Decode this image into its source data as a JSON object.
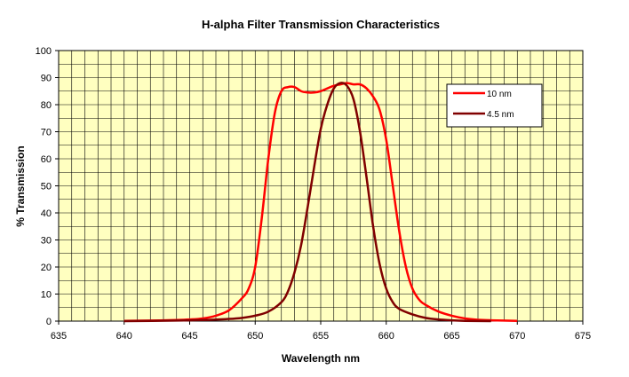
{
  "chart_data": {
    "type": "line",
    "title": "H-alpha Filter Transmission Characteristics",
    "xlabel": "Wavelength nm",
    "ylabel": "% Transmission",
    "xlim": [
      635,
      675
    ],
    "ylim": [
      0,
      100
    ],
    "x_ticks": [
      635,
      640,
      645,
      650,
      655,
      660,
      665,
      670,
      675
    ],
    "y_ticks": [
      0,
      10,
      20,
      30,
      40,
      50,
      60,
      70,
      80,
      90,
      100
    ],
    "grid": true,
    "legend_position": "top-right",
    "plot_background": "#ffffc0",
    "series": [
      {
        "name": "10 nm",
        "color": "#ff0000",
        "x": [
          640,
          642,
          644,
          645,
          646,
          647,
          648,
          649,
          649.5,
          650,
          650.5,
          651,
          651.5,
          652,
          652.5,
          653,
          653.5,
          654,
          654.5,
          655,
          655.5,
          656,
          656.5,
          657,
          657.5,
          658,
          658.5,
          659,
          659.5,
          660,
          660.5,
          661,
          661.5,
          662,
          662.5,
          663,
          664,
          665,
          666,
          667,
          668,
          670
        ],
        "y": [
          0.1,
          0.2,
          0.4,
          0.6,
          1.0,
          2.0,
          4.0,
          8.5,
          12,
          20,
          38,
          60,
          77,
          85,
          86.5,
          86.5,
          85,
          84.5,
          84.5,
          85,
          86,
          87,
          87.5,
          88,
          87.5,
          87.5,
          86,
          83,
          78,
          67,
          50,
          33,
          20,
          12,
          8,
          6,
          3.5,
          2,
          1,
          0.5,
          0.3,
          0.1
        ]
      },
      {
        "name": "4.5 nm",
        "color": "#800000",
        "x": [
          640,
          644,
          646,
          648,
          649,
          650,
          651,
          652,
          652.5,
          653,
          653.5,
          654,
          654.5,
          655,
          655.5,
          656,
          656.5,
          657,
          657.5,
          658,
          658.5,
          659,
          659.5,
          660,
          660.5,
          661,
          662,
          663,
          664,
          665,
          666,
          668
        ],
        "y": [
          0,
          0.2,
          0.4,
          0.8,
          1.2,
          2.0,
          3.5,
          7,
          11,
          18,
          28,
          42,
          57,
          71,
          80,
          86,
          88,
          87,
          82,
          70,
          53,
          35,
          21,
          12,
          7,
          4.5,
          2.5,
          1.2,
          0.6,
          0.3,
          0.1,
          0
        ]
      }
    ]
  }
}
